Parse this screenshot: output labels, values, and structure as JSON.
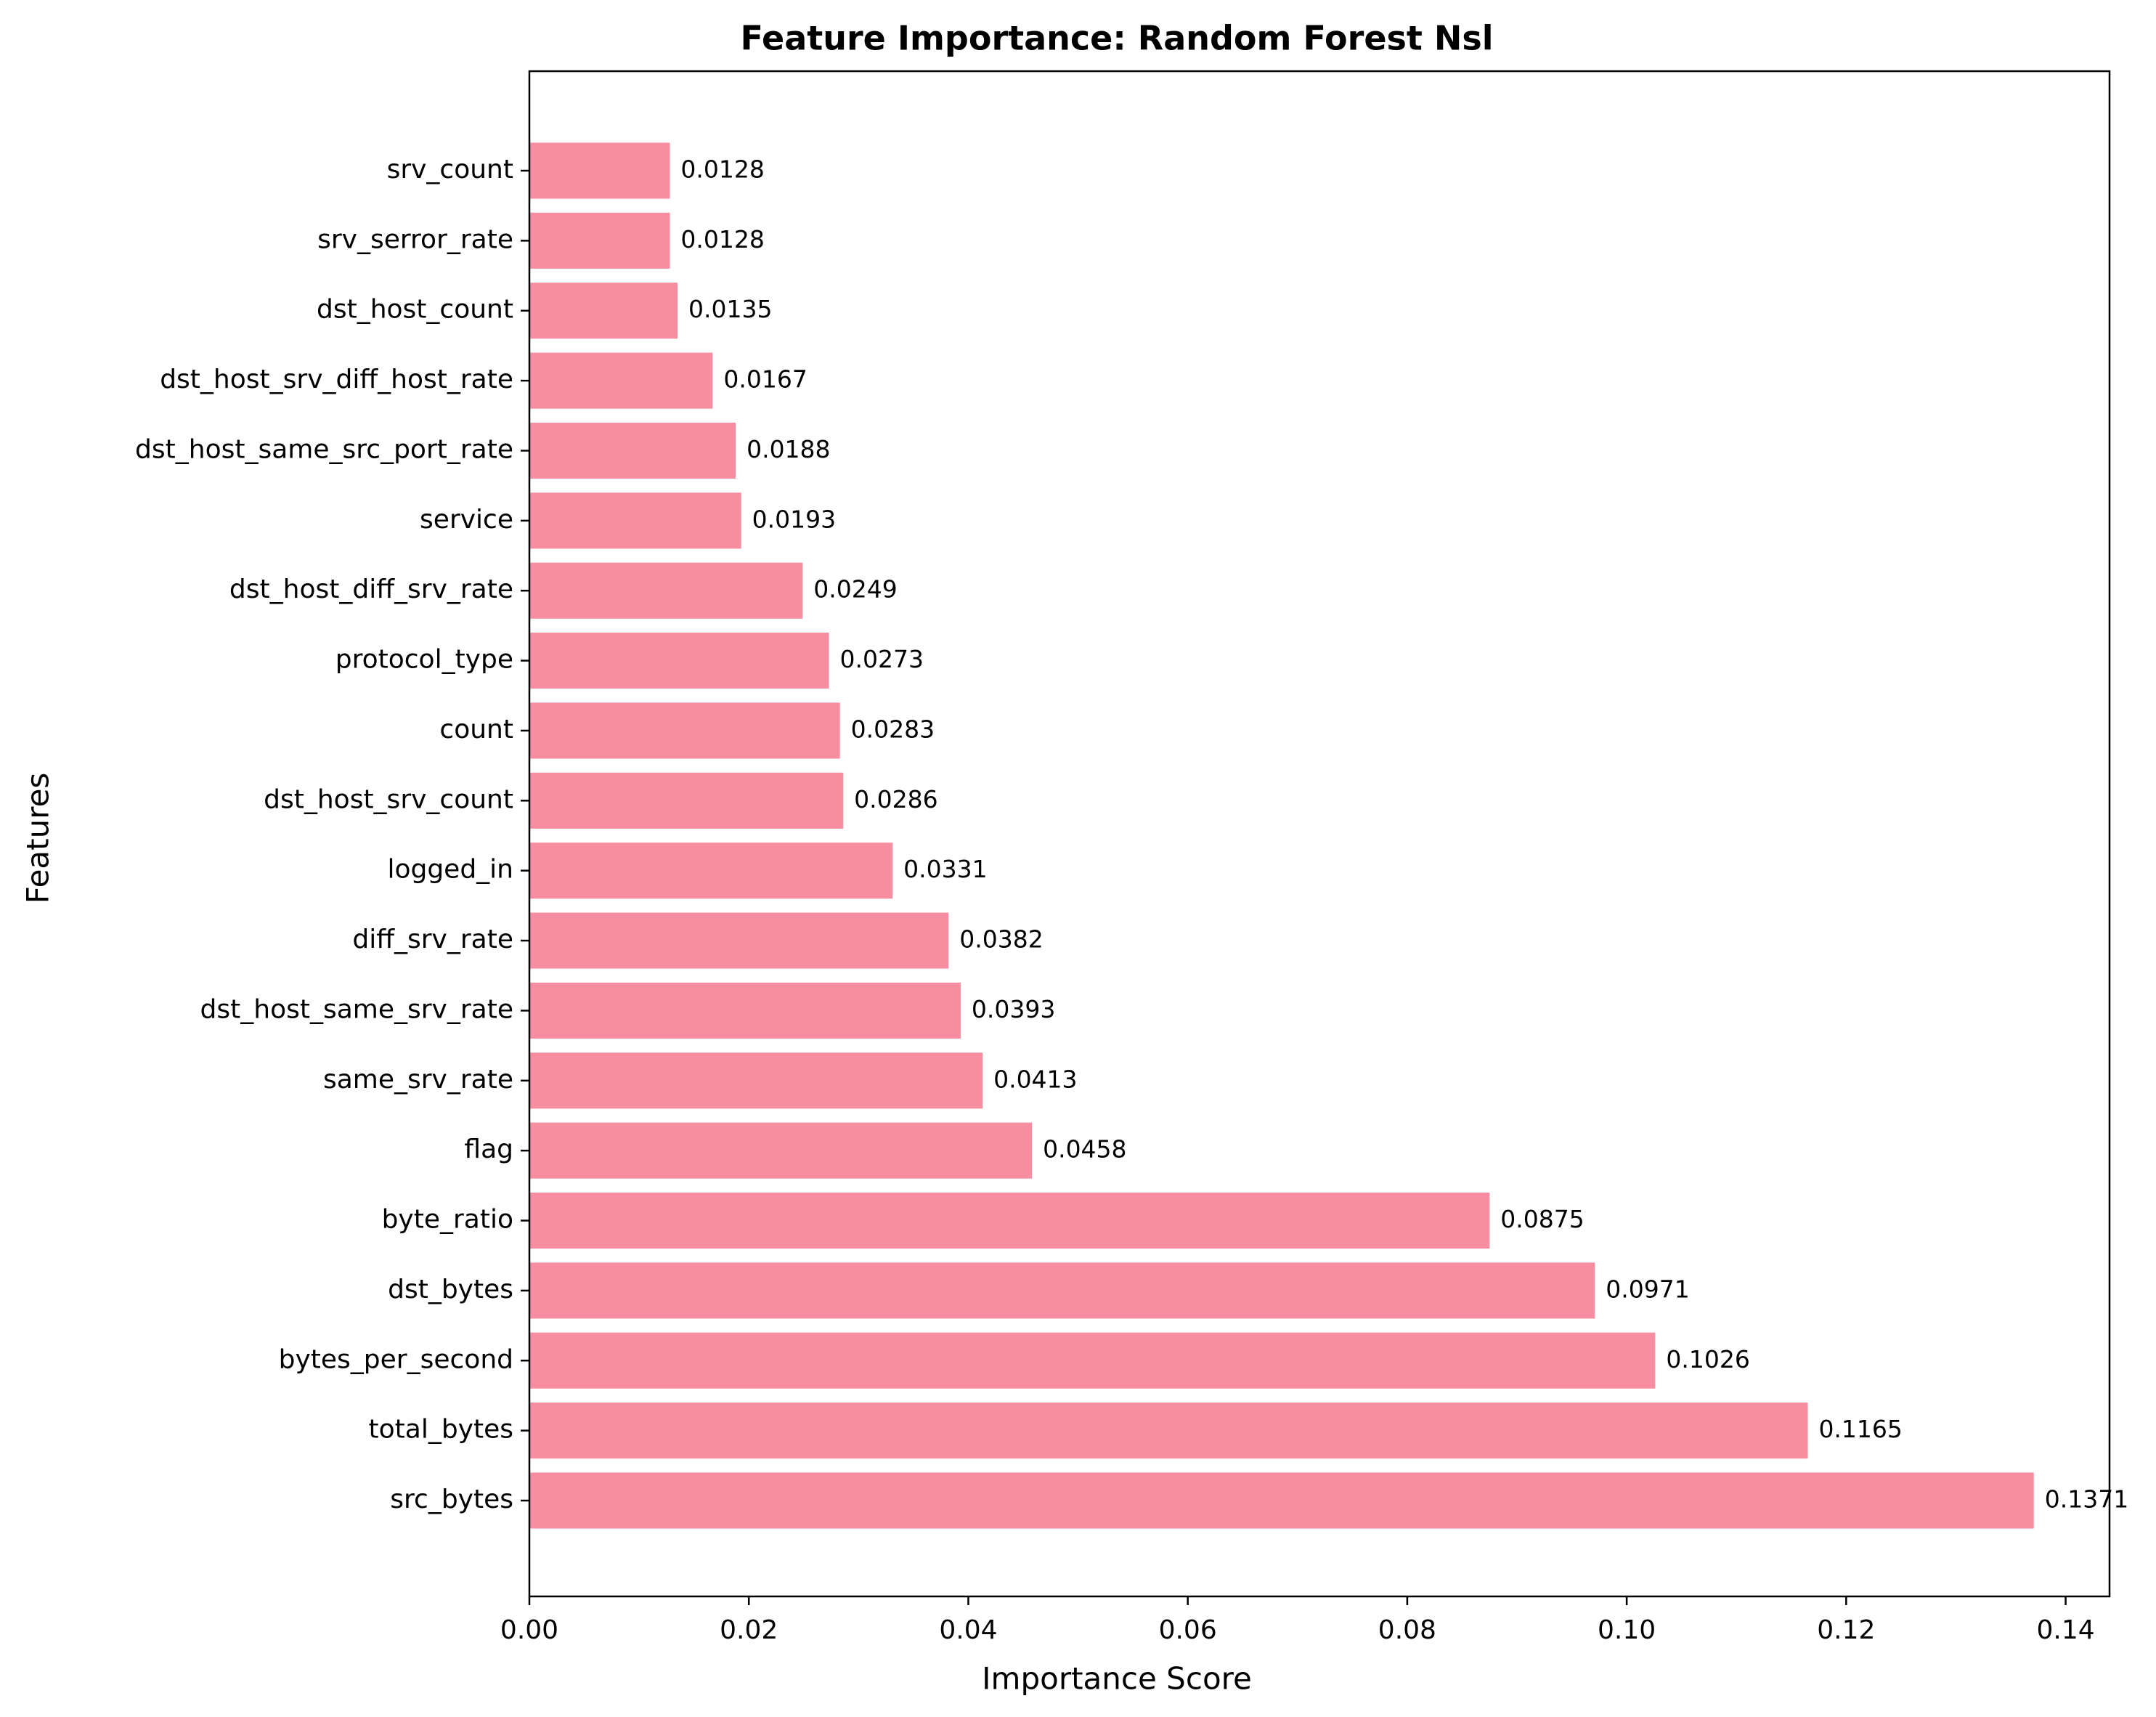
{
  "chart_data": {
    "type": "bar",
    "orientation": "horizontal",
    "title": "Feature Importance: Random Forest Nsl",
    "xlabel": "Importance Score",
    "ylabel": "Features",
    "xlim": [
      0,
      0.144
    ],
    "xticks": [
      0.0,
      0.02,
      0.04,
      0.06,
      0.08,
      0.1,
      0.12,
      0.14
    ],
    "xtick_labels": [
      "0.00",
      "0.02",
      "0.04",
      "0.06",
      "0.08",
      "0.10",
      "0.12",
      "0.14"
    ],
    "grid": false,
    "bar_color": "#f78da0",
    "categories": [
      "src_bytes",
      "total_bytes",
      "bytes_per_second",
      "dst_bytes",
      "byte_ratio",
      "flag",
      "same_srv_rate",
      "dst_host_same_srv_rate",
      "diff_srv_rate",
      "logged_in",
      "dst_host_srv_count",
      "count",
      "protocol_type",
      "dst_host_diff_srv_rate",
      "service",
      "dst_host_same_src_port_rate",
      "dst_host_srv_diff_host_rate",
      "dst_host_count",
      "srv_serror_rate",
      "srv_count"
    ],
    "values": [
      0.1371,
      0.1165,
      0.1026,
      0.0971,
      0.0875,
      0.0458,
      0.0413,
      0.0393,
      0.0382,
      0.0331,
      0.0286,
      0.0283,
      0.0273,
      0.0249,
      0.0193,
      0.0188,
      0.0167,
      0.0135,
      0.0128,
      0.0128
    ],
    "value_labels": [
      "0.1371",
      "0.1165",
      "0.1026",
      "0.0971",
      "0.0875",
      "0.0458",
      "0.0413",
      "0.0393",
      "0.0382",
      "0.0331",
      "0.0286",
      "0.0283",
      "0.0273",
      "0.0249",
      "0.0193",
      "0.0188",
      "0.0167",
      "0.0135",
      "0.0128",
      "0.0128"
    ]
  }
}
